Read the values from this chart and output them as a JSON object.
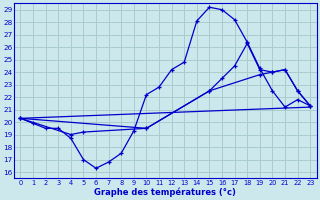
{
  "title": "Graphe des températures (°c)",
  "bg_color": "#cce8ec",
  "grid_color": "#aacccc",
  "line_color": "#0000cc",
  "xlim": [
    -0.5,
    23.5
  ],
  "ylim": [
    15.5,
    29.5
  ],
  "xticks": [
    0,
    1,
    2,
    3,
    4,
    5,
    6,
    7,
    8,
    9,
    10,
    11,
    12,
    13,
    14,
    15,
    16,
    17,
    18,
    19,
    20,
    21,
    22,
    23
  ],
  "yticks": [
    16,
    17,
    18,
    19,
    20,
    21,
    22,
    23,
    24,
    25,
    26,
    27,
    28,
    29
  ],
  "line1_x": [
    0,
    1,
    2,
    3,
    4,
    5,
    6,
    7,
    8,
    9,
    10,
    11,
    12,
    13,
    14,
    15,
    16,
    17,
    18,
    19,
    20,
    21,
    22,
    23
  ],
  "line1_y": [
    20.3,
    19.9,
    19.5,
    19.5,
    18.7,
    17.0,
    16.3,
    16.8,
    17.5,
    19.3,
    22.2,
    22.8,
    24.2,
    24.8,
    28.1,
    29.2,
    29.0,
    28.2,
    26.4,
    24.3,
    22.5,
    21.2,
    21.8,
    21.3
  ],
  "line2_x": [
    0,
    10,
    15,
    16,
    17,
    18,
    19,
    20,
    21,
    22,
    23
  ],
  "line2_y": [
    20.3,
    19.5,
    22.5,
    23.5,
    24.5,
    26.3,
    24.2,
    24.0,
    24.2,
    22.5,
    21.3
  ],
  "line3_x": [
    0,
    23
  ],
  "line3_y": [
    20.3,
    21.2
  ],
  "line4_x": [
    0,
    4,
    5,
    10,
    15,
    19,
    20,
    21,
    22,
    23
  ],
  "line4_y": [
    20.3,
    19.0,
    19.2,
    19.5,
    22.5,
    23.8,
    24.0,
    24.2,
    22.5,
    21.3
  ]
}
